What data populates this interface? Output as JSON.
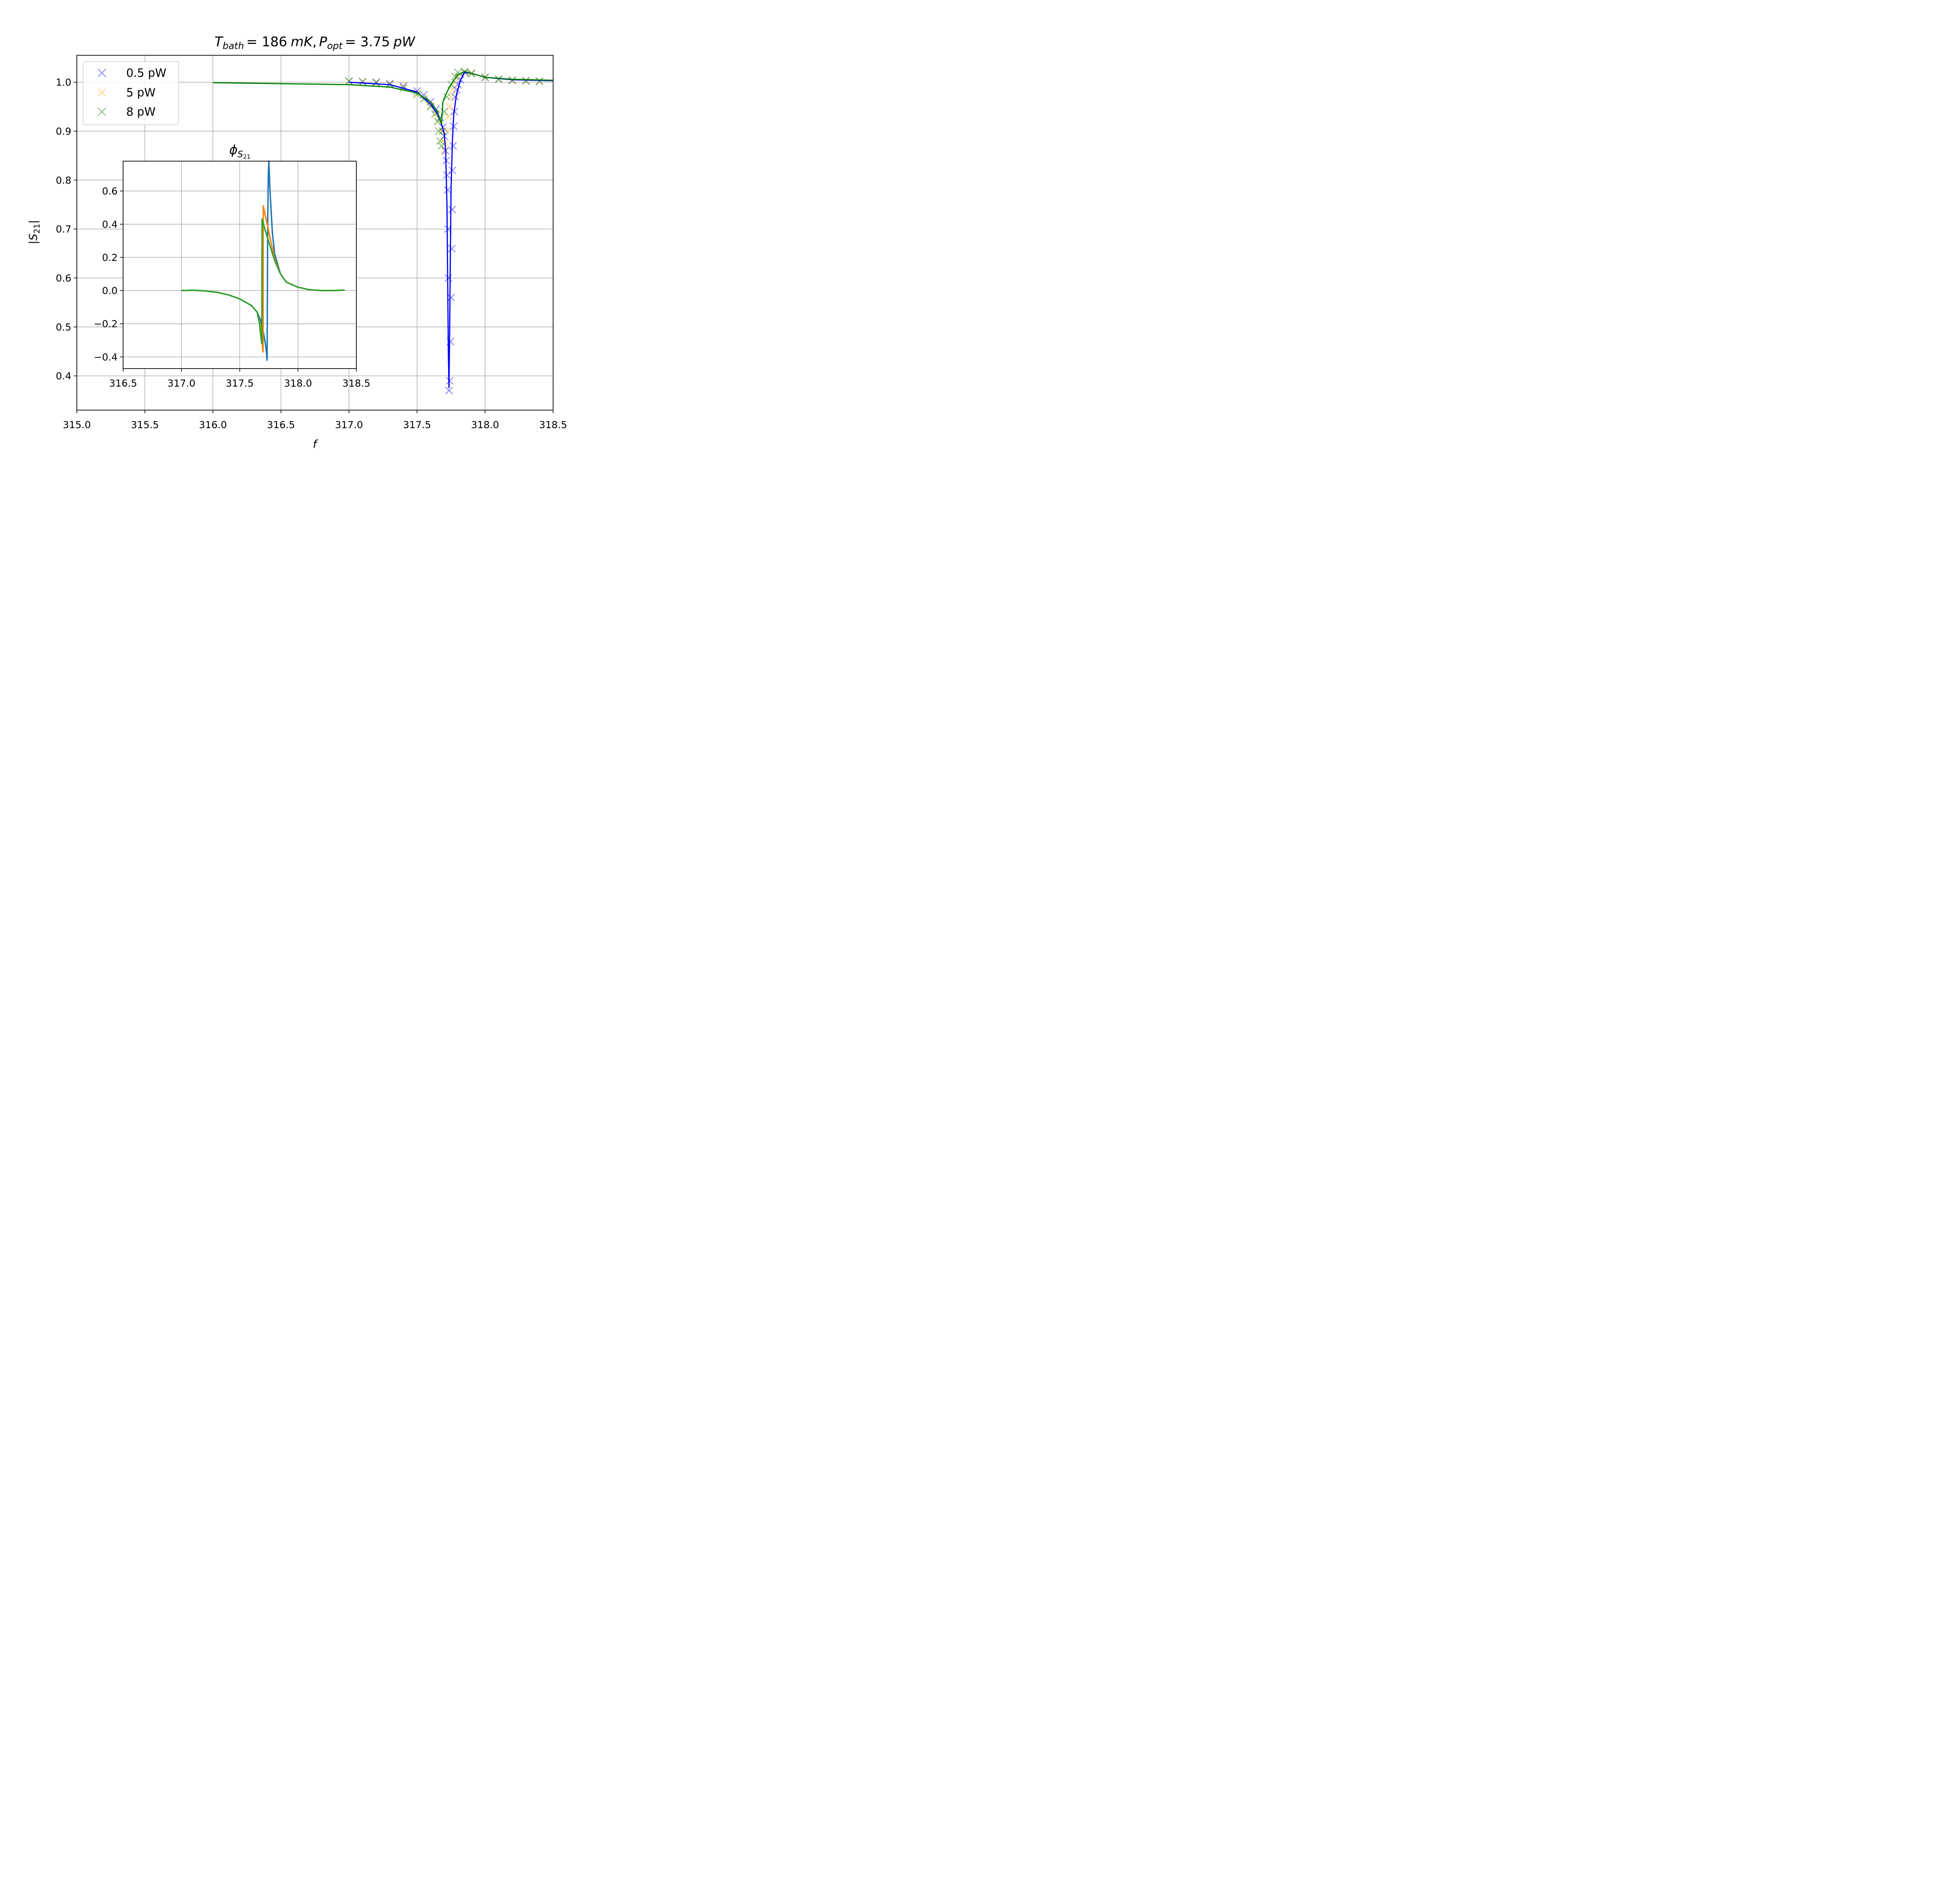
{
  "chart_data": [
    {
      "type": "line",
      "title": "T_bath = 186 mK, P_opt = 3.75 pW",
      "title_parts": {
        "T": "T",
        "T_sub": "bath",
        "eq1": "= 186",
        "unit1": "mK",
        "comma": ",",
        "P": "P",
        "P_sub": "opt",
        "eq2": "= 3.75",
        "unit2": "pW"
      },
      "xlabel": "f",
      "ylabel": "|S21|",
      "ylabel_parts": {
        "left": "|",
        "S": "S",
        "sub": "21",
        "right": "|"
      },
      "xlim": [
        315.0,
        318.5
      ],
      "ylim": [
        0.33,
        1.055
      ],
      "xticks": [
        315.0,
        315.5,
        316.0,
        316.5,
        317.0,
        317.5,
        318.0,
        318.5
      ],
      "xtick_labels": [
        "315.0",
        "315.5",
        "316.0",
        "316.5",
        "317.0",
        "317.5",
        "318.0",
        "318.5"
      ],
      "yticks": [
        0.4,
        0.5,
        0.6,
        0.7,
        0.8,
        0.9,
        1.0
      ],
      "ytick_labels": [
        "0.4",
        "0.5",
        "0.6",
        "0.7",
        "0.8",
        "0.9",
        "1.0"
      ],
      "grid": true,
      "legend_position": "top-left",
      "legend": [
        {
          "label": "0.5 pW",
          "color": "#0000ff"
        },
        {
          "label": "5 pW",
          "color": "#ffa500"
        },
        {
          "label": "8 pW",
          "color": "#008000"
        }
      ],
      "series": [
        {
          "name": "0.5 pW",
          "color": "#0000ff",
          "style": "markers-x",
          "points": [
            [
              317.0,
              1.002
            ],
            [
              317.1,
              1.001
            ],
            [
              317.2,
              1.0
            ],
            [
              317.3,
              0.997
            ],
            [
              317.4,
              0.992
            ],
            [
              317.5,
              0.982
            ],
            [
              317.55,
              0.974
            ],
            [
              317.6,
              0.96
            ],
            [
              317.64,
              0.945
            ],
            [
              317.67,
              0.928
            ],
            [
              317.69,
              0.908
            ],
            [
              317.7,
              0.89
            ],
            [
              317.71,
              0.86
            ],
            [
              317.715,
              0.84
            ],
            [
              317.72,
              0.81
            ],
            [
              317.725,
              0.78
            ],
            [
              317.728,
              0.7
            ],
            [
              317.73,
              0.6
            ],
            [
              317.735,
              0.37
            ],
            [
              317.74,
              0.39
            ],
            [
              317.745,
              0.47
            ],
            [
              317.75,
              0.56
            ],
            [
              317.755,
              0.66
            ],
            [
              317.758,
              0.74
            ],
            [
              317.76,
              0.82
            ],
            [
              317.765,
              0.87
            ],
            [
              317.77,
              0.91
            ],
            [
              317.775,
              0.94
            ],
            [
              317.78,
              0.97
            ],
            [
              317.79,
              0.985
            ],
            [
              317.8,
              0.995
            ],
            [
              317.82,
              1.005
            ],
            [
              317.85,
              1.02
            ],
            [
              317.9,
              1.018
            ],
            [
              318.0,
              1.01
            ],
            [
              318.1,
              1.006
            ],
            [
              318.2,
              1.004
            ],
            [
              318.3,
              1.003
            ],
            [
              318.4,
              1.002
            ]
          ]
        },
        {
          "name": "5 pW",
          "color": "#ffa500",
          "style": "markers-x",
          "points": [
            [
              317.0,
              1.002
            ],
            [
              317.1,
              1.001
            ],
            [
              317.2,
              0.999
            ],
            [
              317.3,
              0.996
            ],
            [
              317.4,
              0.99
            ],
            [
              317.5,
              0.978
            ],
            [
              317.55,
              0.968
            ],
            [
              317.6,
              0.952
            ],
            [
              317.64,
              0.935
            ],
            [
              317.66,
              0.92
            ],
            [
              317.68,
              0.9
            ],
            [
              317.69,
              0.88
            ],
            [
              317.7,
              0.86
            ],
            [
              317.71,
              0.875
            ],
            [
              317.72,
              0.9
            ],
            [
              317.73,
              0.93
            ],
            [
              317.74,
              0.95
            ],
            [
              317.75,
              0.97
            ],
            [
              317.76,
              0.985
            ],
            [
              317.78,
              1.0
            ],
            [
              317.8,
              1.012
            ],
            [
              317.85,
              1.02
            ],
            [
              317.9,
              1.018
            ],
            [
              318.0,
              1.01
            ],
            [
              318.1,
              1.006
            ],
            [
              318.2,
              1.004
            ],
            [
              318.3,
              1.003
            ],
            [
              318.4,
              1.002
            ]
          ]
        },
        {
          "name": "8 pW",
          "color": "#008000",
          "style": "markers-x",
          "points": [
            [
              317.0,
              1.002
            ],
            [
              317.1,
              1.001
            ],
            [
              317.2,
              0.999
            ],
            [
              317.3,
              0.995
            ],
            [
              317.4,
              0.988
            ],
            [
              317.5,
              0.975
            ],
            [
              317.55,
              0.965
            ],
            [
              317.6,
              0.95
            ],
            [
              317.63,
              0.935
            ],
            [
              317.65,
              0.92
            ],
            [
              317.66,
              0.9
            ],
            [
              317.67,
              0.88
            ],
            [
              317.68,
              0.87
            ],
            [
              317.69,
              0.9
            ],
            [
              317.7,
              0.94
            ],
            [
              317.72,
              0.97
            ],
            [
              317.75,
              0.995
            ],
            [
              317.78,
              1.012
            ],
            [
              317.8,
              1.02
            ],
            [
              317.85,
              1.022
            ],
            [
              317.9,
              1.018
            ],
            [
              318.0,
              1.01
            ],
            [
              318.1,
              1.006
            ],
            [
              318.2,
              1.004
            ],
            [
              318.3,
              1.003
            ],
            [
              318.4,
              1.002
            ]
          ]
        },
        {
          "name": "0.5 pW fit",
          "color": "#0000ff",
          "style": "line",
          "points": [
            [
              317.0,
              1.0
            ],
            [
              317.3,
              0.995
            ],
            [
              317.5,
              0.98
            ],
            [
              317.6,
              0.955
            ],
            [
              317.65,
              0.935
            ],
            [
              317.68,
              0.915
            ],
            [
              317.7,
              0.895
            ],
            [
              317.71,
              0.86
            ],
            [
              317.72,
              0.75
            ],
            [
              317.725,
              0.6
            ],
            [
              317.73,
              0.45
            ],
            [
              317.735,
              0.375
            ],
            [
              317.74,
              0.5
            ],
            [
              317.745,
              0.65
            ],
            [
              317.75,
              0.78
            ],
            [
              317.76,
              0.88
            ],
            [
              317.77,
              0.935
            ],
            [
              317.79,
              0.975
            ],
            [
              317.82,
              1.005
            ],
            [
              317.85,
              1.02
            ],
            [
              317.9,
              1.018
            ],
            [
              318.0,
              1.01
            ],
            [
              318.2,
              1.005
            ],
            [
              318.5,
              1.003
            ]
          ]
        },
        {
          "name": "8 pW fit",
          "color": "#008000",
          "style": "line",
          "points": [
            [
              316.0,
              0.999
            ],
            [
              316.5,
              0.997
            ],
            [
              317.0,
              0.995
            ],
            [
              317.3,
              0.99
            ],
            [
              317.5,
              0.978
            ],
            [
              317.6,
              0.96
            ],
            [
              317.65,
              0.94
            ],
            [
              317.68,
              0.915
            ],
            [
              317.69,
              0.96
            ],
            [
              317.72,
              0.98
            ],
            [
              317.76,
              1.0
            ],
            [
              317.8,
              1.015
            ],
            [
              317.85,
              1.022
            ],
            [
              317.9,
              1.018
            ],
            [
              318.0,
              1.01
            ],
            [
              318.2,
              1.006
            ],
            [
              318.5,
              1.004
            ]
          ]
        }
      ]
    },
    {
      "type": "line",
      "title": "φ_S21",
      "title_parts": {
        "phi": "ϕ",
        "sub": "S",
        "subsub": "21"
      },
      "xlim": [
        316.5,
        318.5
      ],
      "ylim": [
        -0.47,
        0.78
      ],
      "xticks": [
        316.5,
        317.0,
        317.5,
        318.0,
        318.5
      ],
      "xtick_labels": [
        "316.5",
        "317.0",
        "317.5",
        "318.0",
        "318.5"
      ],
      "yticks": [
        -0.4,
        -0.2,
        0.0,
        0.2,
        0.4,
        0.6
      ],
      "ytick_labels": [
        "−0.4",
        "−0.2",
        "0.0",
        "0.2",
        "0.4",
        "0.6"
      ],
      "grid": true,
      "series": [
        {
          "color": "#1f77b4",
          "points": [
            [
              317.0,
              0.0
            ],
            [
              317.1,
              0.002
            ],
            [
              317.2,
              -0.002
            ],
            [
              317.3,
              -0.01
            ],
            [
              317.4,
              -0.025
            ],
            [
              317.5,
              -0.05
            ],
            [
              317.6,
              -0.09
            ],
            [
              317.65,
              -0.13
            ],
            [
              317.68,
              -0.18
            ],
            [
              317.7,
              -0.24
            ],
            [
              317.72,
              -0.32
            ],
            [
              317.73,
              -0.38
            ],
            [
              317.735,
              -0.42
            ],
            [
              317.74,
              0.4
            ],
            [
              317.745,
              0.7
            ],
            [
              317.75,
              0.78
            ],
            [
              317.76,
              0.6
            ],
            [
              317.78,
              0.35
            ],
            [
              317.8,
              0.22
            ],
            [
              317.85,
              0.1
            ],
            [
              317.9,
              0.05
            ],
            [
              318.0,
              0.02
            ],
            [
              318.1,
              0.005
            ],
            [
              318.2,
              0.0
            ],
            [
              318.3,
              0.0
            ],
            [
              318.4,
              0.003
            ]
          ]
        },
        {
          "color": "#ff7f0e",
          "points": [
            [
              317.0,
              0.0
            ],
            [
              317.1,
              0.002
            ],
            [
              317.2,
              -0.002
            ],
            [
              317.3,
              -0.01
            ],
            [
              317.4,
              -0.025
            ],
            [
              317.5,
              -0.05
            ],
            [
              317.6,
              -0.09
            ],
            [
              317.65,
              -0.13
            ],
            [
              317.68,
              -0.22
            ],
            [
              317.69,
              -0.3
            ],
            [
              317.7,
              -0.37
            ],
            [
              317.701,
              0.2
            ],
            [
              317.702,
              0.51
            ],
            [
              317.73,
              0.42
            ],
            [
              317.76,
              0.32
            ],
            [
              317.8,
              0.19
            ],
            [
              317.85,
              0.1
            ],
            [
              317.9,
              0.05
            ],
            [
              318.0,
              0.02
            ],
            [
              318.1,
              0.005
            ],
            [
              318.2,
              0.0
            ],
            [
              318.3,
              0.0
            ],
            [
              318.4,
              0.003
            ]
          ]
        },
        {
          "color": "#2ca02c",
          "points": [
            [
              317.0,
              0.0
            ],
            [
              317.1,
              0.002
            ],
            [
              317.2,
              -0.002
            ],
            [
              317.3,
              -0.01
            ],
            [
              317.4,
              -0.025
            ],
            [
              317.5,
              -0.05
            ],
            [
              317.6,
              -0.09
            ],
            [
              317.65,
              -0.13
            ],
            [
              317.67,
              -0.2
            ],
            [
              317.68,
              -0.27
            ],
            [
              317.69,
              -0.32
            ],
            [
              317.691,
              0.1
            ],
            [
              317.692,
              0.43
            ],
            [
              317.72,
              0.36
            ],
            [
              317.76,
              0.27
            ],
            [
              317.8,
              0.18
            ],
            [
              317.85,
              0.1
            ],
            [
              317.9,
              0.05
            ],
            [
              318.0,
              0.02
            ],
            [
              318.1,
              0.005
            ],
            [
              318.2,
              0.0
            ],
            [
              318.3,
              0.0
            ],
            [
              318.4,
              0.003
            ]
          ]
        }
      ]
    }
  ]
}
